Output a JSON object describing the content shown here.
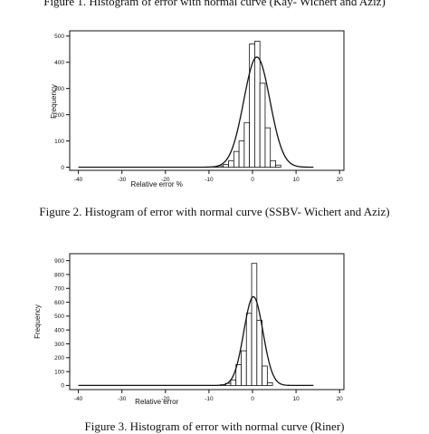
{
  "captions": {
    "fig1": "Figure 1. Histogram of error with normal curve (Kay- Wichert and Aziz)",
    "fig2": "Figure 2. Histogram of error with normal curve (SSBV- Wichert and Aziz)",
    "fig3": "Figure 3. Histogram of error with normal curve (Riner)"
  },
  "chart_data": [
    {
      "type": "bar",
      "title": "",
      "xlabel": "Relative error %",
      "ylabel": "Frequency",
      "xlim": [
        -42,
        21
      ],
      "ylim": [
        -12,
        520
      ],
      "xticks": [
        -40,
        -30,
        -20,
        -10,
        0,
        10,
        20
      ],
      "yticks": [
        0,
        100,
        200,
        300,
        400,
        500
      ],
      "bin_width": 1.2,
      "bins": [
        -9.1,
        -7.9,
        -6.7,
        -5.5,
        -4.3,
        -3.1,
        -1.9,
        -0.7,
        0.5,
        1.7,
        2.9,
        4.1,
        5.3
      ],
      "values": [
        1,
        5,
        10,
        25,
        60,
        100,
        170,
        470,
        480,
        320,
        150,
        25,
        8
      ],
      "normal_curve": {
        "mean": 1.0,
        "sd": 3.0,
        "peak": 420,
        "x_range": [
          -40,
          14
        ]
      }
    },
    {
      "type": "bar",
      "title": "",
      "xlabel": "Relative error",
      "ylabel": "Frequency",
      "xlim": [
        -42,
        21
      ],
      "ylim": [
        -30,
        950
      ],
      "xticks": [
        -40,
        -30,
        -20,
        -10,
        0,
        10,
        20
      ],
      "yticks": [
        0,
        100,
        200,
        300,
        400,
        500,
        600,
        700,
        800,
        900
      ],
      "bin_width": 1.2,
      "bins": [
        -7.4,
        -6.2,
        -5.0,
        -3.8,
        -2.6,
        -1.4,
        -0.2,
        1.0,
        2.2,
        3.4
      ],
      "values": [
        5,
        15,
        40,
        150,
        250,
        520,
        880,
        470,
        140,
        20
      ],
      "normal_curve": {
        "mean": 0.2,
        "sd": 2.2,
        "peak": 640,
        "x_range": [
          -40,
          14
        ]
      }
    }
  ]
}
